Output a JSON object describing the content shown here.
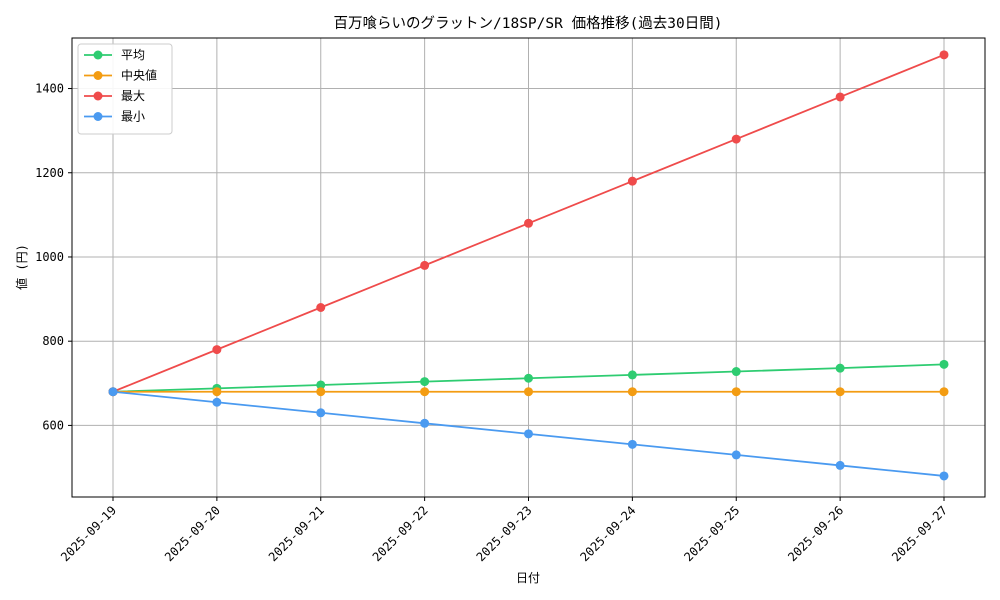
{
  "chart_data": {
    "type": "line",
    "title": "百万喰らいのグラットン/18SP/SR 価格推移(過去30日間)",
    "xlabel": "日付",
    "ylabel": "値 (円)",
    "categories": [
      "2025-09-19",
      "2025-09-20",
      "2025-09-21",
      "2025-09-22",
      "2025-09-23",
      "2025-09-24",
      "2025-09-25",
      "2025-09-26",
      "2025-09-27"
    ],
    "ylim": [
      430,
      1520
    ],
    "yticks": [
      600,
      800,
      1000,
      1200,
      1400
    ],
    "grid": true,
    "legend_position": "top-left",
    "series": [
      {
        "name": "平均",
        "color": "#2ecc71",
        "values": [
          680,
          688,
          696,
          704,
          712,
          720,
          728,
          736,
          745
        ]
      },
      {
        "name": "中央値",
        "color": "#f39c12",
        "values": [
          680,
          680,
          680,
          680,
          680,
          680,
          680,
          680,
          680
        ]
      },
      {
        "name": "最大",
        "color": "#ef4b4b",
        "values": [
          680,
          780,
          880,
          980,
          1080,
          1180,
          1280,
          1380,
          1480
        ]
      },
      {
        "name": "最小",
        "color": "#4a9af0",
        "values": [
          680,
          655,
          630,
          605,
          580,
          555,
          530,
          505,
          480
        ]
      }
    ]
  }
}
